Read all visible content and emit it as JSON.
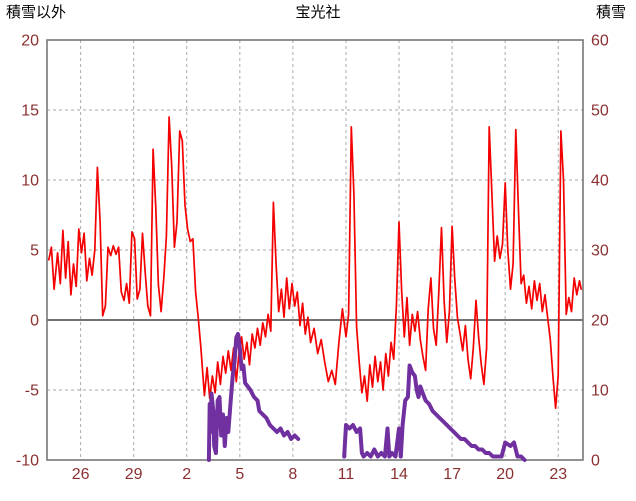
{
  "header": {
    "left_axis_label": "積雪以外",
    "title": "宝光社",
    "right_axis_label": "積雪"
  },
  "colors": {
    "background": "#ffffff",
    "border": "#777777",
    "grid": "#aaaaaa",
    "zero_line": "#444444",
    "tick_label": "#8b3030",
    "header_label": "#000000",
    "temperature_line": "#f40000",
    "snow_line": "#7030a0"
  },
  "chart_data": {
    "type": "line",
    "title": "宝光社",
    "left_axis": {
      "label": "積雪以外",
      "min": -10,
      "max": 20,
      "ticks": [
        -10,
        -5,
        0,
        5,
        10,
        15,
        20
      ]
    },
    "right_axis": {
      "label": "積雪",
      "min": 0,
      "max": 60,
      "ticks": [
        0,
        10,
        20,
        30,
        40,
        50,
        60
      ]
    },
    "x_axis": {
      "day_min": 24.1,
      "day_max": 54.4,
      "tick_days": [
        26,
        29,
        32,
        35,
        38,
        41,
        44,
        47,
        50,
        53
      ],
      "tick_labels": [
        "26",
        "29",
        "2",
        "5",
        "8",
        "11",
        "14",
        "17",
        "20",
        "23"
      ]
    },
    "grid": {
      "horizontal": true,
      "vertical": true,
      "dashed": true
    },
    "series": [
      {
        "name": "temperature-red",
        "axis": "left",
        "color": "#f40000",
        "width": 1.7,
        "points": [
          [
            24.2,
            4.3
          ],
          [
            24.35,
            5.2
          ],
          [
            24.5,
            2.2
          ],
          [
            24.7,
            4.8
          ],
          [
            24.85,
            2.6
          ],
          [
            25,
            6.4
          ],
          [
            25.15,
            3
          ],
          [
            25.3,
            5.6
          ],
          [
            25.45,
            1.8
          ],
          [
            25.6,
            4
          ],
          [
            25.75,
            2.4
          ],
          [
            25.9,
            6.5
          ],
          [
            26.05,
            4.8
          ],
          [
            26.2,
            6.2
          ],
          [
            26.35,
            2.8
          ],
          [
            26.5,
            4.4
          ],
          [
            26.65,
            3.2
          ],
          [
            26.8,
            5
          ],
          [
            26.95,
            10.9
          ],
          [
            27.1,
            7
          ],
          [
            27.25,
            0.3
          ],
          [
            27.4,
            1
          ],
          [
            27.55,
            5.2
          ],
          [
            27.7,
            4.6
          ],
          [
            27.85,
            5.3
          ],
          [
            28,
            4.7
          ],
          [
            28.15,
            5.2
          ],
          [
            28.3,
            2
          ],
          [
            28.45,
            1.4
          ],
          [
            28.6,
            2.6
          ],
          [
            28.75,
            1.2
          ],
          [
            28.9,
            6.3
          ],
          [
            29.05,
            5.8
          ],
          [
            29.2,
            1.5
          ],
          [
            29.35,
            2.2
          ],
          [
            29.5,
            6.2
          ],
          [
            29.65,
            3.4
          ],
          [
            29.8,
            1
          ],
          [
            29.95,
            0.3
          ],
          [
            30.1,
            12.2
          ],
          [
            30.25,
            8
          ],
          [
            30.4,
            2.5
          ],
          [
            30.55,
            0.6
          ],
          [
            30.7,
            3
          ],
          [
            30.85,
            6
          ],
          [
            31,
            14.5
          ],
          [
            31.15,
            11
          ],
          [
            31.3,
            5.2
          ],
          [
            31.45,
            7
          ],
          [
            31.6,
            13.5
          ],
          [
            31.75,
            12.8
          ],
          [
            31.9,
            8.2
          ],
          [
            32.05,
            6.5
          ],
          [
            32.2,
            5.6
          ],
          [
            32.35,
            5.8
          ],
          [
            32.5,
            2
          ],
          [
            32.65,
            0.2
          ],
          [
            32.8,
            -2
          ],
          [
            33,
            -5.4
          ],
          [
            33.15,
            -3.4
          ],
          [
            33.3,
            -5.6
          ],
          [
            33.45,
            -4
          ],
          [
            33.6,
            -5.2
          ],
          [
            33.75,
            -3
          ],
          [
            33.9,
            -4.6
          ],
          [
            34.05,
            -2.6
          ],
          [
            34.2,
            -3.8
          ],
          [
            34.35,
            -2.2
          ],
          [
            34.5,
            -3.6
          ],
          [
            34.65,
            -2
          ],
          [
            34.8,
            -4.4
          ],
          [
            34.95,
            -2.4
          ],
          [
            35.1,
            -1.2
          ],
          [
            35.25,
            -2.8
          ],
          [
            35.4,
            -1.6
          ],
          [
            35.55,
            -3.2
          ],
          [
            35.7,
            -1
          ],
          [
            35.85,
            -2
          ],
          [
            36,
            -0.6
          ],
          [
            36.15,
            -1.8
          ],
          [
            36.3,
            -0.2
          ],
          [
            36.45,
            -1.2
          ],
          [
            36.6,
            0.4
          ],
          [
            36.75,
            -0.8
          ],
          [
            36.9,
            8.4
          ],
          [
            37.05,
            4
          ],
          [
            37.2,
            0.6
          ],
          [
            37.35,
            2.2
          ],
          [
            37.5,
            0.2
          ],
          [
            37.65,
            3
          ],
          [
            37.8,
            0.8
          ],
          [
            37.95,
            2.6
          ],
          [
            38.1,
            1
          ],
          [
            38.25,
            2
          ],
          [
            38.4,
            -0.4
          ],
          [
            38.55,
            1.2
          ],
          [
            38.7,
            -1
          ],
          [
            38.85,
            0.2
          ],
          [
            39,
            -1.6
          ],
          [
            39.2,
            -0.6
          ],
          [
            39.4,
            -2.4
          ],
          [
            39.6,
            -1.4
          ],
          [
            39.8,
            -3
          ],
          [
            40,
            -4.4
          ],
          [
            40.2,
            -3.6
          ],
          [
            40.4,
            -4.6
          ],
          [
            40.6,
            -1.6
          ],
          [
            40.8,
            0.8
          ],
          [
            41,
            -1.2
          ],
          [
            41.15,
            0.4
          ],
          [
            41.3,
            13.8
          ],
          [
            41.45,
            9
          ],
          [
            41.6,
            -0.5
          ],
          [
            41.75,
            -3
          ],
          [
            41.9,
            -5.2
          ],
          [
            42.05,
            -4
          ],
          [
            42.2,
            -5.8
          ],
          [
            42.35,
            -3.2
          ],
          [
            42.5,
            -4.8
          ],
          [
            42.65,
            -2.6
          ],
          [
            42.8,
            -4.4
          ],
          [
            42.95,
            -3
          ],
          [
            43.1,
            -5
          ],
          [
            43.25,
            -2.4
          ],
          [
            43.4,
            -4
          ],
          [
            43.55,
            -1.6
          ],
          [
            43.7,
            -2.8
          ],
          [
            43.85,
            1
          ],
          [
            44,
            7
          ],
          [
            44.15,
            2
          ],
          [
            44.3,
            -1.2
          ],
          [
            44.45,
            1.6
          ],
          [
            44.6,
            -1.8
          ],
          [
            44.75,
            0.4
          ],
          [
            44.9,
            -0.8
          ],
          [
            45.05,
            0.6
          ],
          [
            45.2,
            -1.4
          ],
          [
            45.35,
            -2.6
          ],
          [
            45.5,
            -3.6
          ],
          [
            45.65,
            0.8
          ],
          [
            45.8,
            3
          ],
          [
            45.95,
            -0.6
          ],
          [
            46.1,
            -1.8
          ],
          [
            46.25,
            2
          ],
          [
            46.4,
            6.6
          ],
          [
            46.55,
            1.4
          ],
          [
            46.7,
            -1.6
          ],
          [
            46.85,
            0.6
          ],
          [
            47,
            6.7
          ],
          [
            47.15,
            3
          ],
          [
            47.3,
            0.2
          ],
          [
            47.45,
            -1
          ],
          [
            47.6,
            -2.2
          ],
          [
            47.75,
            -0.4
          ],
          [
            47.9,
            -2.8
          ],
          [
            48.05,
            -4.2
          ],
          [
            48.2,
            -2
          ],
          [
            48.35,
            1.4
          ],
          [
            48.5,
            -1.2
          ],
          [
            48.65,
            -3.2
          ],
          [
            48.8,
            -4.6
          ],
          [
            48.95,
            -2
          ],
          [
            49.1,
            13.8
          ],
          [
            49.25,
            9
          ],
          [
            49.4,
            4.2
          ],
          [
            49.55,
            6
          ],
          [
            49.7,
            4.4
          ],
          [
            49.85,
            5.4
          ],
          [
            50,
            9.8
          ],
          [
            50.15,
            5
          ],
          [
            50.3,
            2.2
          ],
          [
            50.45,
            4
          ],
          [
            50.6,
            13.6
          ],
          [
            50.75,
            8
          ],
          [
            50.9,
            2.6
          ],
          [
            51.05,
            3.2
          ],
          [
            51.2,
            1.2
          ],
          [
            51.35,
            2.4
          ],
          [
            51.5,
            0.8
          ],
          [
            51.65,
            2.8
          ],
          [
            51.8,
            1.4
          ],
          [
            51.95,
            2.6
          ],
          [
            52.1,
            0.6
          ],
          [
            52.25,
            1.8
          ],
          [
            52.4,
            0.2
          ],
          [
            52.55,
            -1.4
          ],
          [
            52.7,
            -4
          ],
          [
            52.85,
            -6.3
          ],
          [
            53,
            -4
          ],
          [
            53.15,
            13.5
          ],
          [
            53.3,
            10
          ],
          [
            53.45,
            0.4
          ],
          [
            53.6,
            1.6
          ],
          [
            53.75,
            0.6
          ],
          [
            53.9,
            3
          ],
          [
            54.05,
            1.8
          ],
          [
            54.2,
            2.8
          ],
          [
            54.3,
            2.2
          ]
        ]
      },
      {
        "name": "snow-depth-purple",
        "axis": "right",
        "color": "#7030a0",
        "width": 4,
        "points": [
          [
            33.25,
            0
          ],
          [
            33.3,
            8
          ],
          [
            33.35,
            4
          ],
          [
            33.4,
            9.5
          ],
          [
            33.5,
            7
          ],
          [
            33.55,
            2
          ],
          [
            33.65,
            1
          ],
          [
            33.75,
            8.5
          ],
          [
            33.85,
            9
          ],
          [
            33.95,
            3.5
          ],
          [
            34.05,
            6.5
          ],
          [
            34.15,
            2
          ],
          [
            34.25,
            6
          ],
          [
            34.35,
            4
          ],
          [
            34.5,
            9
          ],
          [
            34.6,
            12
          ],
          [
            34.7,
            14
          ],
          [
            34.8,
            17.5
          ],
          [
            34.9,
            18
          ],
          [
            35,
            16
          ],
          [
            35.1,
            13
          ],
          [
            35.2,
            13.5
          ],
          [
            35.3,
            11
          ],
          [
            35.45,
            10.5
          ],
          [
            35.6,
            10
          ],
          [
            35.8,
            9
          ],
          [
            36,
            8.5
          ],
          [
            36.1,
            7
          ],
          [
            36.3,
            6.5
          ],
          [
            36.5,
            6
          ],
          [
            36.7,
            5
          ],
          [
            36.9,
            4.5
          ],
          [
            37.1,
            4
          ],
          [
            37.3,
            4.5
          ],
          [
            37.5,
            3.5
          ],
          [
            37.7,
            4
          ],
          [
            37.9,
            3
          ],
          [
            38.1,
            3.5
          ],
          [
            38.3,
            3
          ],
          null,
          [
            40.9,
            0.5
          ],
          [
            41,
            5
          ],
          [
            41.2,
            4.5
          ],
          [
            41.4,
            5
          ],
          [
            41.6,
            4
          ],
          [
            41.8,
            4.5
          ],
          [
            41.9,
            1
          ],
          [
            42,
            0.5
          ],
          [
            42.2,
            1
          ],
          [
            42.4,
            0.5
          ],
          [
            42.6,
            1.5
          ],
          [
            42.8,
            0.5
          ],
          [
            43,
            1
          ],
          [
            43.2,
            0.5
          ],
          [
            43.35,
            4.5
          ],
          [
            43.45,
            0.5
          ],
          [
            43.6,
            1
          ],
          [
            43.8,
            0.5
          ],
          [
            44,
            4.5
          ],
          [
            44.1,
            0.5
          ],
          [
            44.2,
            5
          ],
          [
            44.35,
            8.5
          ],
          [
            44.5,
            9
          ],
          [
            44.6,
            13.5
          ],
          [
            44.75,
            12.5
          ],
          [
            44.9,
            12
          ],
          [
            45,
            10
          ],
          [
            45.1,
            9
          ],
          [
            45.2,
            10.5
          ],
          [
            45.35,
            9.5
          ],
          [
            45.5,
            8.5
          ],
          [
            45.7,
            8
          ],
          [
            45.9,
            7
          ],
          [
            46.1,
            6.5
          ],
          [
            46.3,
            6
          ],
          [
            46.5,
            5.5
          ],
          [
            46.7,
            5
          ],
          [
            46.9,
            4.5
          ],
          [
            47.1,
            4
          ],
          [
            47.3,
            3.5
          ],
          [
            47.5,
            3
          ],
          [
            47.7,
            3
          ],
          [
            47.9,
            2.5
          ],
          [
            48.1,
            2
          ],
          [
            48.3,
            2
          ],
          [
            48.5,
            1.5
          ],
          [
            48.7,
            1.5
          ],
          [
            48.9,
            1
          ],
          [
            49.1,
            1
          ],
          [
            49.3,
            0.5
          ],
          [
            49.5,
            0.5
          ],
          [
            49.8,
            0.5
          ],
          [
            50,
            2.5
          ],
          [
            50.3,
            2
          ],
          [
            50.5,
            2.5
          ],
          [
            50.7,
            0.5
          ],
          [
            50.9,
            0.5
          ],
          [
            51.1,
            0
          ]
        ]
      }
    ]
  }
}
